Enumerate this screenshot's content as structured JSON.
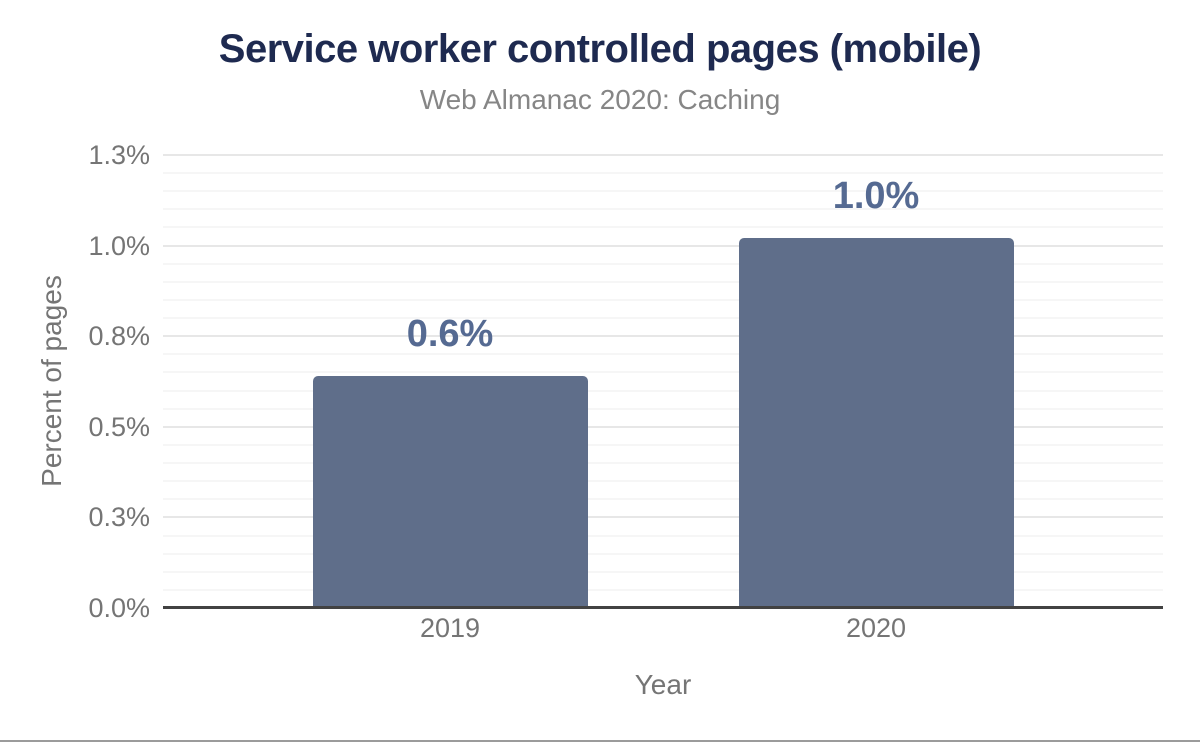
{
  "chart_data": {
    "type": "bar",
    "title": "Service worker controlled pages (mobile)",
    "subtitle": "Web Almanac 2020: Caching",
    "xlabel": "Year",
    "ylabel": "Percent of pages",
    "categories": [
      "2019",
      "2020"
    ],
    "values": [
      0.64,
      1.02
    ],
    "value_labels": [
      "0.6%",
      "1.0%"
    ],
    "ylim": [
      0,
      1.25
    ],
    "yticks": [
      {
        "value": 0.0,
        "label": "0.0%"
      },
      {
        "value": 0.25,
        "label": "0.3%"
      },
      {
        "value": 0.5,
        "label": "0.5%"
      },
      {
        "value": 0.75,
        "label": "0.8%"
      },
      {
        "value": 1.0,
        "label": "1.0%"
      },
      {
        "value": 1.25,
        "label": "1.3%"
      }
    ],
    "minor_tick_step": 0.05,
    "grid": true,
    "legend": false
  },
  "colors": {
    "bar": "#5f6e8a",
    "data_label": "#556a92",
    "title": "#1e2a50",
    "subtitle": "#868686",
    "tick_label": "#757575",
    "axis_title": "#757575",
    "major_grid": "#e7e7e7",
    "minor_grid": "#f6f6f6",
    "axis_line": "#424242",
    "bottom_border": "#9b9b9b"
  }
}
